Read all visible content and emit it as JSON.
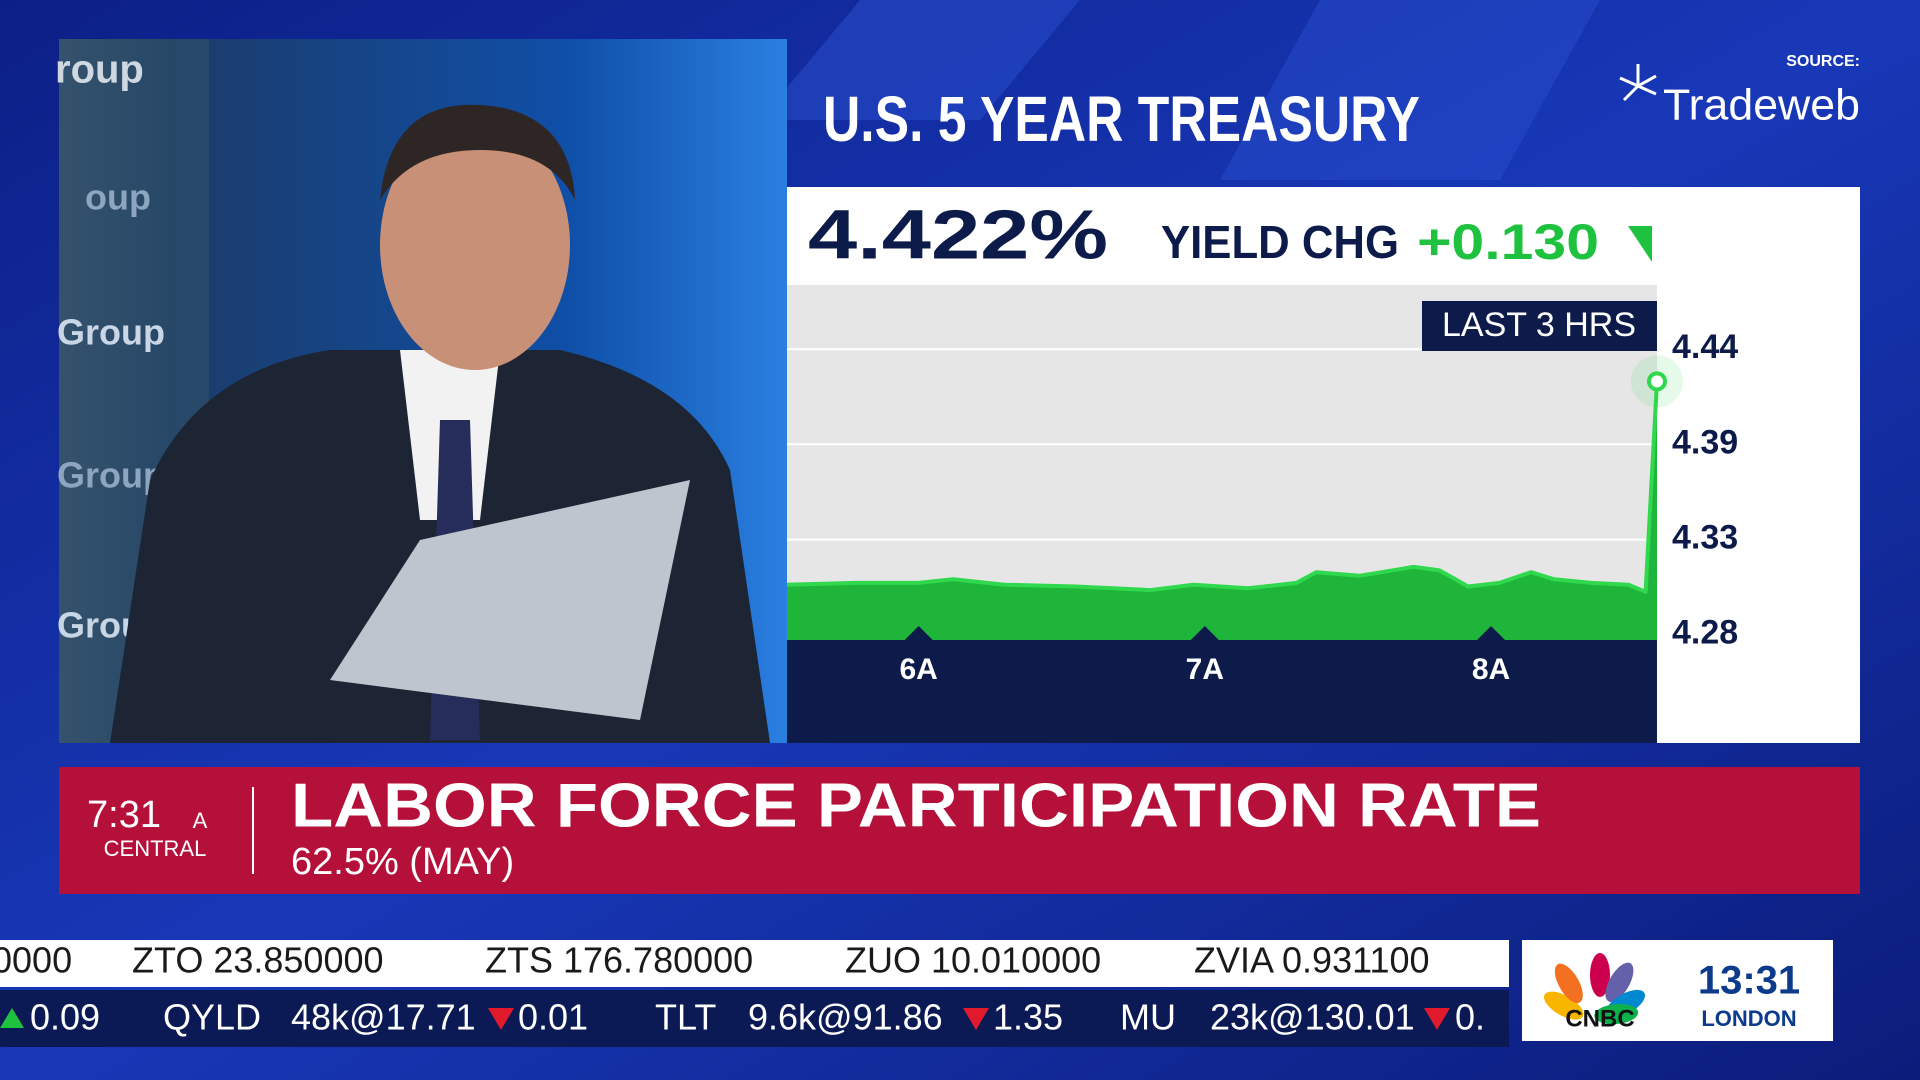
{
  "chart_data": {
    "type": "line",
    "title": "U.S. 5 YEAR TREASURY",
    "annotation": "LAST 3 HRS",
    "x": [
      5.54,
      5.78,
      6.0,
      6.12,
      6.3,
      6.55,
      6.81,
      6.96,
      7.15,
      7.32,
      7.39,
      7.54,
      7.73,
      7.82,
      7.92,
      8.03,
      8.14,
      8.22,
      8.35,
      8.48,
      8.54,
      8.58
    ],
    "series": [
      {
        "name": "U.S. 5 Year Treasury yield",
        "color": "#2fd84c",
        "values": [
          4.308,
          4.309,
          4.309,
          4.311,
          4.308,
          4.307,
          4.305,
          4.308,
          4.306,
          4.309,
          4.315,
          4.313,
          4.318,
          4.316,
          4.307,
          4.309,
          4.315,
          4.311,
          4.309,
          4.308,
          4.304,
          4.422
        ]
      }
    ],
    "xlim": [
      5.54,
      8.58
    ],
    "xticks": [
      {
        "value": 6,
        "label": "6A"
      },
      {
        "value": 7,
        "label": "7A"
      },
      {
        "value": 8,
        "label": "8A"
      }
    ],
    "ylim": [
      4.277,
      4.476
    ],
    "yticks": [
      {
        "value": 4.28,
        "label": "4.28"
      },
      {
        "value": 4.3333,
        "label": "4.33"
      },
      {
        "value": 4.3867,
        "label": "4.39"
      },
      {
        "value": 4.44,
        "label": "4.44"
      }
    ],
    "grid": true
  },
  "source": {
    "label": "SOURCE:",
    "name": "Tradeweb"
  },
  "quote": {
    "value": "4.422%",
    "change_label": "YIELD CHG",
    "change": "+0.130"
  },
  "backdrop_labels": [
    "roup",
    "oup",
    "Group",
    "Group",
    "Grou"
  ],
  "lower_third": {
    "time": "7:31",
    "meridiem": "A",
    "zone": "CENTRAL",
    "headline": "LABOR FORCE PARTICIPATION RATE",
    "detail": "62.5% (MAY)"
  },
  "ticker": {
    "top": [
      "0000",
      "ZTO 23.850000",
      "ZTS 176.780000",
      "ZUO 10.010000",
      "ZVIA 0.931100"
    ],
    "bottom": [
      "0.09",
      "QYLD",
      "48k@17.71",
      "0.01",
      "TLT",
      "9.6k@91.86",
      "1.35",
      "MU",
      "23k@130.01",
      "0."
    ]
  },
  "clock": {
    "brand": "CNBC",
    "time": "13:31",
    "city": "LONDON"
  }
}
